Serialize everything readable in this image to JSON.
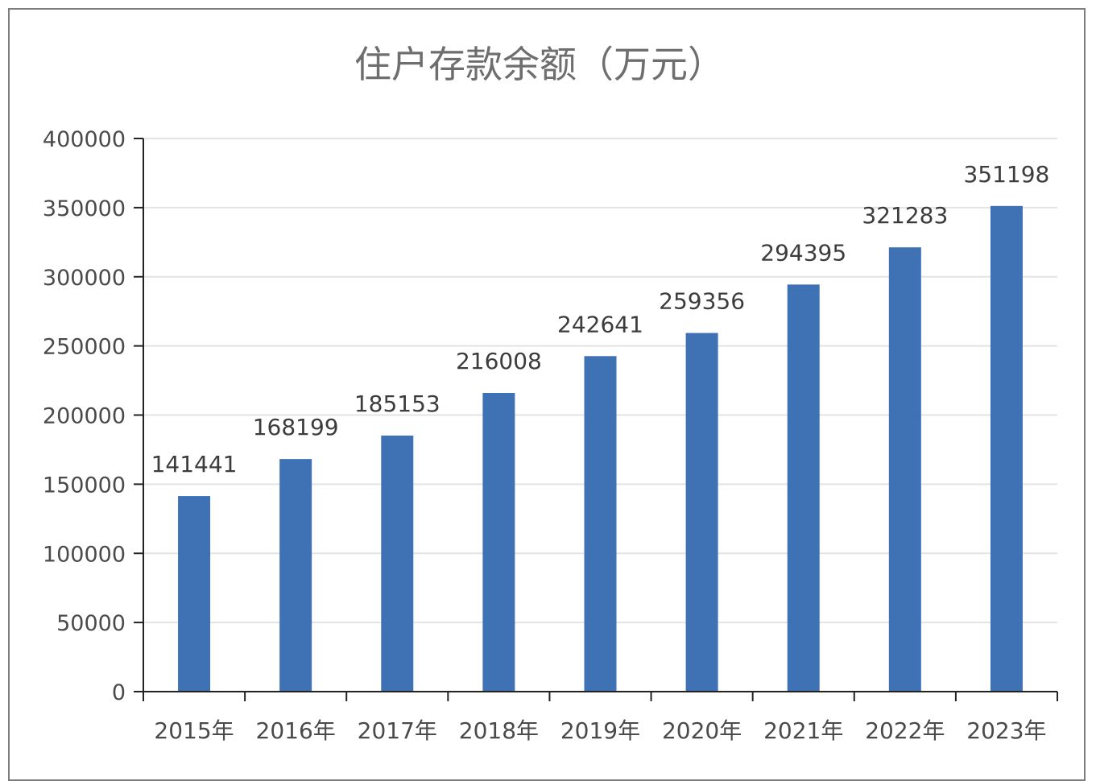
{
  "chart_data": {
    "type": "bar",
    "title": "住户存款余额（万元）",
    "xlabel": "",
    "ylabel": "",
    "categories": [
      "2015年",
      "2016年",
      "2017年",
      "2018年",
      "2019年",
      "2020年",
      "2021年",
      "2022年",
      "2023年"
    ],
    "values": [
      141441,
      168199,
      185153,
      216008,
      242641,
      259356,
      294395,
      321283,
      351198
    ],
    "ylim": [
      0,
      400000
    ],
    "yticks": [
      "0",
      "50000",
      "100000",
      "150000",
      "200000",
      "250000",
      "300000",
      "350000",
      "400000"
    ],
    "grid": true,
    "legend": "none",
    "colors": {
      "bar": "#3f72b4",
      "grid": "#e3e3e3",
      "axis": "#222222",
      "frame": "#7d7d7d"
    }
  }
}
